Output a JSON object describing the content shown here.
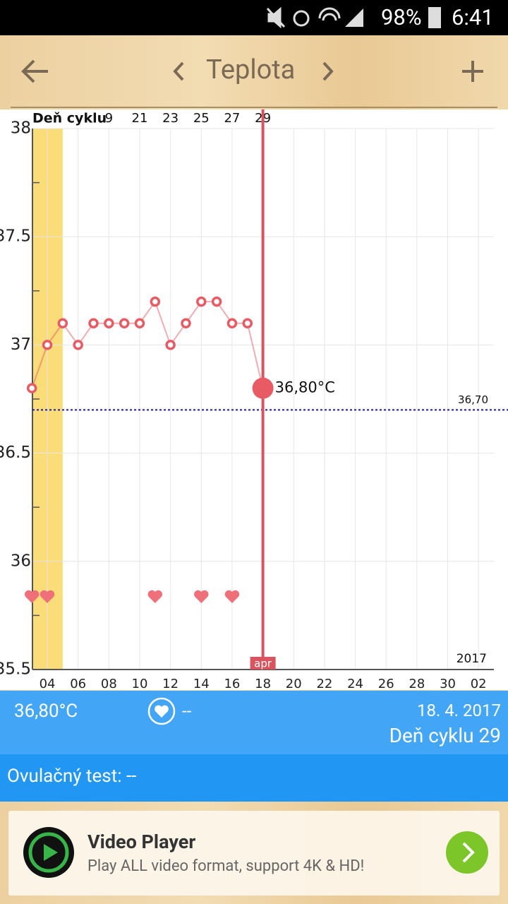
{
  "status_bar": {
    "battery": "98%",
    "time": "6:41"
  },
  "header": {
    "title": "Teplota"
  },
  "chart_data": {
    "type": "line",
    "x": [
      3,
      4,
      5,
      6,
      7,
      8,
      9,
      10,
      11,
      12,
      13,
      14,
      15,
      16,
      17,
      18
    ],
    "values": [
      36.8,
      37.0,
      37.1,
      37.0,
      37.1,
      37.1,
      37.1,
      37.1,
      37.2,
      37.0,
      37.1,
      37.2,
      37.2,
      37.1,
      37.1,
      36.8
    ],
    "color": "#e85a64",
    "xlim": [
      3,
      33
    ],
    "xticks": [
      {
        "value": 4,
        "label": "04"
      },
      {
        "value": 6,
        "label": "06"
      },
      {
        "value": 8,
        "label": "08"
      },
      10,
      12,
      14,
      16,
      18,
      20,
      22,
      24,
      26,
      28,
      30,
      {
        "value": 32,
        "label": "02"
      }
    ],
    "ylim": [
      35.5,
      38
    ],
    "yticks": [
      35.5,
      36,
      36.5,
      37,
      37.5,
      38
    ],
    "yminor": [
      35.75,
      36.25,
      36.75,
      37.25,
      37.75
    ],
    "grid": true,
    "x2label": "Deň cyklu",
    "x2lim": [
      14,
      44
    ],
    "x2ticks": [
      {
        "value": 19,
        "label": "9"
      },
      21,
      23,
      25,
      27,
      29
    ],
    "reference": {
      "value": 36.7,
      "label": "36,70",
      "color": "#1a1aa8"
    },
    "selected": {
      "x": 18,
      "value": 36.8,
      "label": "36,80°C",
      "month": "apr"
    },
    "year": "2017",
    "band": {
      "x": [
        3,
        5
      ],
      "color": "#fadc78"
    },
    "hearts": {
      "x": [
        3,
        4,
        11,
        14,
        16
      ],
      "color": "#f0707a"
    }
  },
  "summary": {
    "temperature": "36,80°C",
    "heart": "--",
    "date": "18. 4. 2017",
    "cycle_day": "Deň cyklu 29",
    "ovulation_test": "Ovulačný test: --"
  },
  "ad": {
    "title": "Video Player",
    "text": "Play ALL video format, support 4K & HD!"
  }
}
